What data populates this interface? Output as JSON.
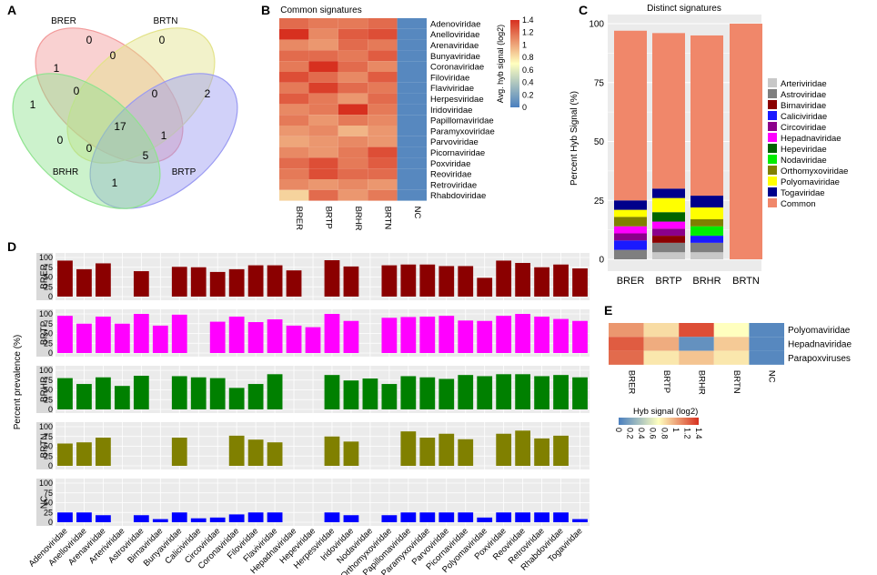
{
  "colors": {
    "panel_bg": "#ebebeb",
    "grid": "#ffffff",
    "heat_low": "#4a7fbf",
    "heat_mid": "#ffffbf",
    "heat_high": "#d7301f",
    "common": "#f0876a"
  },
  "chart_data": [
    {
      "panel": "A",
      "type": "venn",
      "title": "",
      "sets": [
        {
          "name": "BRER",
          "color": "#f29a9a"
        },
        {
          "name": "BRTN",
          "color": "#e3e38a"
        },
        {
          "name": "BRTP",
          "color": "#9a9af2"
        },
        {
          "name": "BRHR",
          "color": "#8fe38f"
        }
      ],
      "region_counts": [
        {
          "region": "BRER only",
          "value": "0"
        },
        {
          "region": "BRTN only",
          "value": "0"
        },
        {
          "region": "BRER+BRTN",
          "value": "0"
        },
        {
          "region": "BRTP only",
          "value": "2"
        },
        {
          "region": "BRHR only",
          "value": "1"
        },
        {
          "region": "BRER+BRHR",
          "value": "1"
        },
        {
          "region": "BRER+BRTN+BRHR",
          "value": "0"
        },
        {
          "region": "BRTN+BRTP",
          "value": "0"
        },
        {
          "region": "BRER+BRTN+BRTP+BRHR",
          "value": "17"
        },
        {
          "region": "BRER+BRTN+BRTP",
          "value": "1"
        },
        {
          "region": "BRTN+BRHR",
          "value": "0"
        },
        {
          "region": "BRER+BRHR+BRTP",
          "value": "0"
        },
        {
          "region": "BRTN+BRTP+BRHR",
          "value": "5"
        },
        {
          "region": "BRTP+BRHR",
          "value": "1"
        }
      ]
    },
    {
      "panel": "B",
      "type": "heatmap",
      "title": "Common signatures",
      "columns": [
        "BRER",
        "BRTP",
        "BRHR",
        "BRTN",
        "NC"
      ],
      "rows": [
        "Adenoviridae",
        "Anelloviridae",
        "Arenaviridae",
        "Bunyaviridae",
        "Coronaviridae",
        "Filoviridae",
        "Flaviviridae",
        "Herpesviridae",
        "Iridoviridae",
        "Papillomaviridae",
        "Paramyxoviridae",
        "Parvoviridae",
        "Picornaviridae",
        "Poxviridae",
        "Reoviridae",
        "Retroviridae",
        "Rhabdoviridae"
      ],
      "values": [
        [
          1.2,
          1.15,
          1.15,
          1.2,
          0.05
        ],
        [
          1.4,
          1.1,
          1.25,
          1.3,
          0.05
        ],
        [
          1.1,
          1.05,
          1.2,
          1.15,
          0.05
        ],
        [
          1.2,
          1.2,
          1.15,
          1.25,
          0.05
        ],
        [
          1.15,
          1.4,
          1.2,
          1.1,
          0.05
        ],
        [
          1.3,
          1.2,
          1.1,
          1.25,
          0.05
        ],
        [
          1.15,
          1.35,
          1.2,
          1.15,
          0.05
        ],
        [
          1.25,
          1.15,
          1.05,
          1.2,
          0.05
        ],
        [
          1.1,
          1.15,
          1.4,
          1.15,
          0.05
        ],
        [
          1.15,
          1.05,
          1.15,
          1.1,
          0.05
        ],
        [
          1.05,
          1.1,
          0.95,
          1.05,
          0.05
        ],
        [
          1.0,
          1.05,
          1.1,
          1.05,
          0.05
        ],
        [
          1.1,
          1.05,
          1.15,
          1.3,
          0.05
        ],
        [
          1.2,
          1.3,
          1.15,
          1.25,
          0.05
        ],
        [
          1.15,
          1.3,
          1.2,
          1.2,
          0.05
        ],
        [
          1.1,
          1.05,
          1.1,
          1.05,
          0.05
        ],
        [
          0.85,
          1.2,
          1.05,
          1.15,
          0.05
        ]
      ],
      "legend_title": "Avg. hyb signal (log2)",
      "legend_ticks": [
        "0",
        "0.2",
        "0.4",
        "0.6",
        "0.8",
        "1",
        "1.2",
        "1.4"
      ],
      "range": [
        0,
        1.4
      ]
    },
    {
      "panel": "C",
      "type": "bar",
      "title": "Distinct signatures",
      "ylabel": "Percent Hyb Signal (%)",
      "xlabel": "",
      "categories": [
        "BRER",
        "BRTP",
        "BRHR",
        "BRTN"
      ],
      "ylim": [
        0,
        100
      ],
      "yticks": [
        "0",
        "25",
        "50",
        "75",
        "100"
      ],
      "legend": [
        {
          "name": "Arteriviridae",
          "color": "#c8c8c8"
        },
        {
          "name": "Astroviridae",
          "color": "#7f7f7f"
        },
        {
          "name": "Birnaviridae",
          "color": "#8b0000"
        },
        {
          "name": "Caliciviridae",
          "color": "#1a1aff"
        },
        {
          "name": "Circoviridae",
          "color": "#8b008b"
        },
        {
          "name": "Hepadnaviridae",
          "color": "#ff00ff"
        },
        {
          "name": "Hepeviridae",
          "color": "#006400"
        },
        {
          "name": "Nodaviridae",
          "color": "#00ee00"
        },
        {
          "name": "Orthomyxoviridae",
          "color": "#808000"
        },
        {
          "name": "Polyomaviridae",
          "color": "#ffff00"
        },
        {
          "name": "Togaviridae",
          "color": "#00008b"
        },
        {
          "name": "Common",
          "color": "#f0876a"
        }
      ],
      "series": [
        {
          "name": "Arteriviridae",
          "values": [
            0,
            3,
            3,
            0
          ]
        },
        {
          "name": "Astroviridae",
          "values": [
            4,
            4,
            4,
            0
          ]
        },
        {
          "name": "Birnaviridae",
          "values": [
            0,
            3,
            0,
            0
          ]
        },
        {
          "name": "Caliciviridae",
          "values": [
            4,
            0,
            3,
            0
          ]
        },
        {
          "name": "Circoviridae",
          "values": [
            3,
            3,
            0,
            0
          ]
        },
        {
          "name": "Hepadnaviridae",
          "values": [
            3,
            3,
            0,
            0
          ]
        },
        {
          "name": "Hepeviridae",
          "values": [
            0,
            4,
            0,
            0
          ]
        },
        {
          "name": "Nodaviridae",
          "values": [
            0,
            0,
            4,
            0
          ]
        },
        {
          "name": "Orthomyxoviridae",
          "values": [
            4,
            0,
            3,
            0
          ]
        },
        {
          "name": "Polyomaviridae",
          "values": [
            3,
            6,
            5,
            0
          ]
        },
        {
          "name": "Togaviridae",
          "values": [
            4,
            4,
            5,
            0
          ]
        },
        {
          "name": "Common",
          "values": [
            72,
            66,
            68,
            100
          ]
        }
      ]
    },
    {
      "panel": "D",
      "type": "bar",
      "title": "",
      "ylabel": "Percent prevalence (%)",
      "xlabel": "",
      "categories": [
        "Adenoviridae",
        "Anelloviridae",
        "Arenaviridae",
        "Arteriviridae",
        "Astroviridae",
        "Birnaviridae",
        "Bunyaviridae",
        "Caliciviridae",
        "Circoviridae",
        "Coronaviridae",
        "Filoviridae",
        "Flaviviridae",
        "Hepadnaviridae",
        "Hepeviridae",
        "Herpesviridae",
        "Iridoviridae",
        "Nodaviridae",
        "Orthomyxoviridae",
        "Papillomaviridae",
        "Paramyxoviridae",
        "Parvoviridae",
        "Picornaviridae",
        "Polyomaviridae",
        "Poxviridae",
        "Reoviridae",
        "Retroviridae",
        "Rhabdoviridae",
        "Togaviridae"
      ],
      "ylim": [
        0,
        100
      ],
      "yticks": [
        "0",
        "25",
        "50",
        "75",
        "100"
      ],
      "series": [
        {
          "name": "BRER",
          "color": "#8b0000",
          "values": [
            92,
            70,
            85,
            0,
            65,
            0,
            76,
            75,
            63,
            70,
            80,
            80,
            67,
            0,
            93,
            77,
            0,
            80,
            82,
            82,
            78,
            78,
            48,
            92,
            86,
            75,
            82,
            72
          ]
        },
        {
          "name": "BRTP",
          "color": "#ff00ff",
          "values": [
            95,
            75,
            93,
            75,
            100,
            70,
            98,
            0,
            80,
            93,
            79,
            86,
            70,
            66,
            100,
            82,
            0,
            90,
            92,
            93,
            95,
            83,
            82,
            95,
            100,
            93,
            87,
            82
          ]
        },
        {
          "name": "BRHR",
          "color": "#008000",
          "values": [
            80,
            65,
            82,
            60,
            86,
            0,
            85,
            82,
            80,
            55,
            65,
            90,
            0,
            0,
            88,
            74,
            79,
            65,
            85,
            82,
            78,
            88,
            85,
            90,
            90,
            85,
            88,
            82
          ]
        },
        {
          "name": "BRTN",
          "color": "#808000",
          "values": [
            57,
            60,
            72,
            0,
            0,
            0,
            72,
            0,
            0,
            77,
            67,
            60,
            0,
            0,
            75,
            62,
            0,
            0,
            88,
            72,
            82,
            68,
            0,
            82,
            90,
            70,
            77,
            0
          ]
        },
        {
          "name": "NC",
          "color": "#0000ff",
          "values": [
            25,
            25,
            18,
            0,
            18,
            8,
            25,
            10,
            12,
            20,
            25,
            25,
            0,
            0,
            25,
            18,
            0,
            18,
            25,
            25,
            25,
            25,
            12,
            25,
            25,
            25,
            25,
            8
          ]
        }
      ]
    },
    {
      "panel": "E",
      "type": "heatmap",
      "title": "",
      "columns": [
        "BRER",
        "BRTP",
        "BRHR",
        "BRTN",
        "NC"
      ],
      "rows": [
        "Polyomaviridae",
        "Hepadnaviridae",
        "Parapoxviruses"
      ],
      "values": [
        [
          1.05,
          0.82,
          1.3,
          0.7,
          0.05
        ],
        [
          1.25,
          0.98,
          0.1,
          0.88,
          0.05
        ],
        [
          1.2,
          0.78,
          0.9,
          0.78,
          0.05
        ]
      ],
      "legend_title": "Hyb signal (log2)",
      "legend_ticks": [
        "0",
        "0.2",
        "0.4",
        "0.6",
        "0.8",
        "1",
        "1.2",
        "1.4"
      ],
      "range": [
        0,
        1.4
      ]
    }
  ],
  "panel_labels": [
    "A",
    "B",
    "C",
    "D",
    "E"
  ]
}
